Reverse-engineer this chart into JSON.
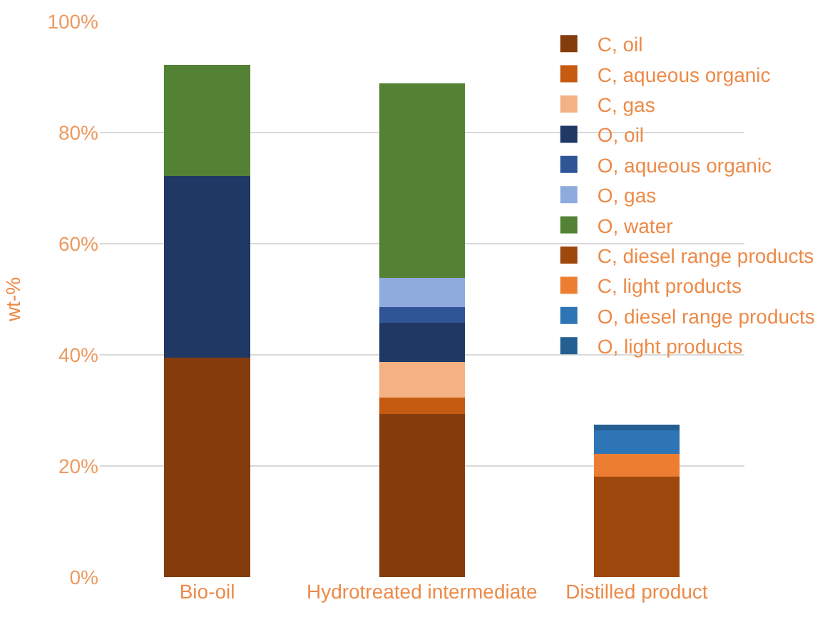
{
  "chart_data": {
    "type": "bar",
    "stacked": true,
    "ylabel": "wt-%",
    "categories": [
      "Bio-oil",
      "Hydrotreated intermediate",
      "Distilled product"
    ],
    "series": [
      {
        "name": "C, oil",
        "color": "#843c0c",
        "values": [
          39.5,
          29.3,
          null
        ]
      },
      {
        "name": "C, aqueous organic",
        "color": "#c55a11",
        "values": [
          null,
          3.0,
          null
        ]
      },
      {
        "name": "C, gas",
        "color": "#f4b183",
        "values": [
          null,
          6.4,
          null
        ]
      },
      {
        "name": "O, oil",
        "color": "#203864",
        "values": [
          32.7,
          7.1,
          null
        ]
      },
      {
        "name": "O, aqueous organic",
        "color": "#2f5597",
        "values": [
          null,
          2.8,
          null
        ]
      },
      {
        "name": "O, gas",
        "color": "#8faadc",
        "values": [
          null,
          5.2,
          null
        ]
      },
      {
        "name": "O, water",
        "color": "#548235",
        "values": [
          20.0,
          35.1,
          null
        ]
      },
      {
        "name": "C, diesel range products",
        "color": "#9e480e",
        "values": [
          null,
          null,
          18.1
        ]
      },
      {
        "name": "C, light products",
        "color": "#ed7d31",
        "values": [
          null,
          null,
          4.1
        ]
      },
      {
        "name": "O, diesel range products",
        "color": "#2e75b6",
        "values": [
          null,
          null,
          4.2
        ]
      },
      {
        "name": "O, light products",
        "color": "#255e91",
        "values": [
          null,
          null,
          1.0
        ]
      }
    ],
    "ylim": [
      0,
      100
    ],
    "yticks": [
      {
        "value": 0,
        "label": "0%"
      },
      {
        "value": 20,
        "label": "20%"
      },
      {
        "value": 40,
        "label": "40%"
      },
      {
        "value": 60,
        "label": "60%"
      },
      {
        "value": 80,
        "label": "80%"
      },
      {
        "value": 100,
        "label": "100%"
      }
    ],
    "grid": "y",
    "legend": "top right"
  }
}
